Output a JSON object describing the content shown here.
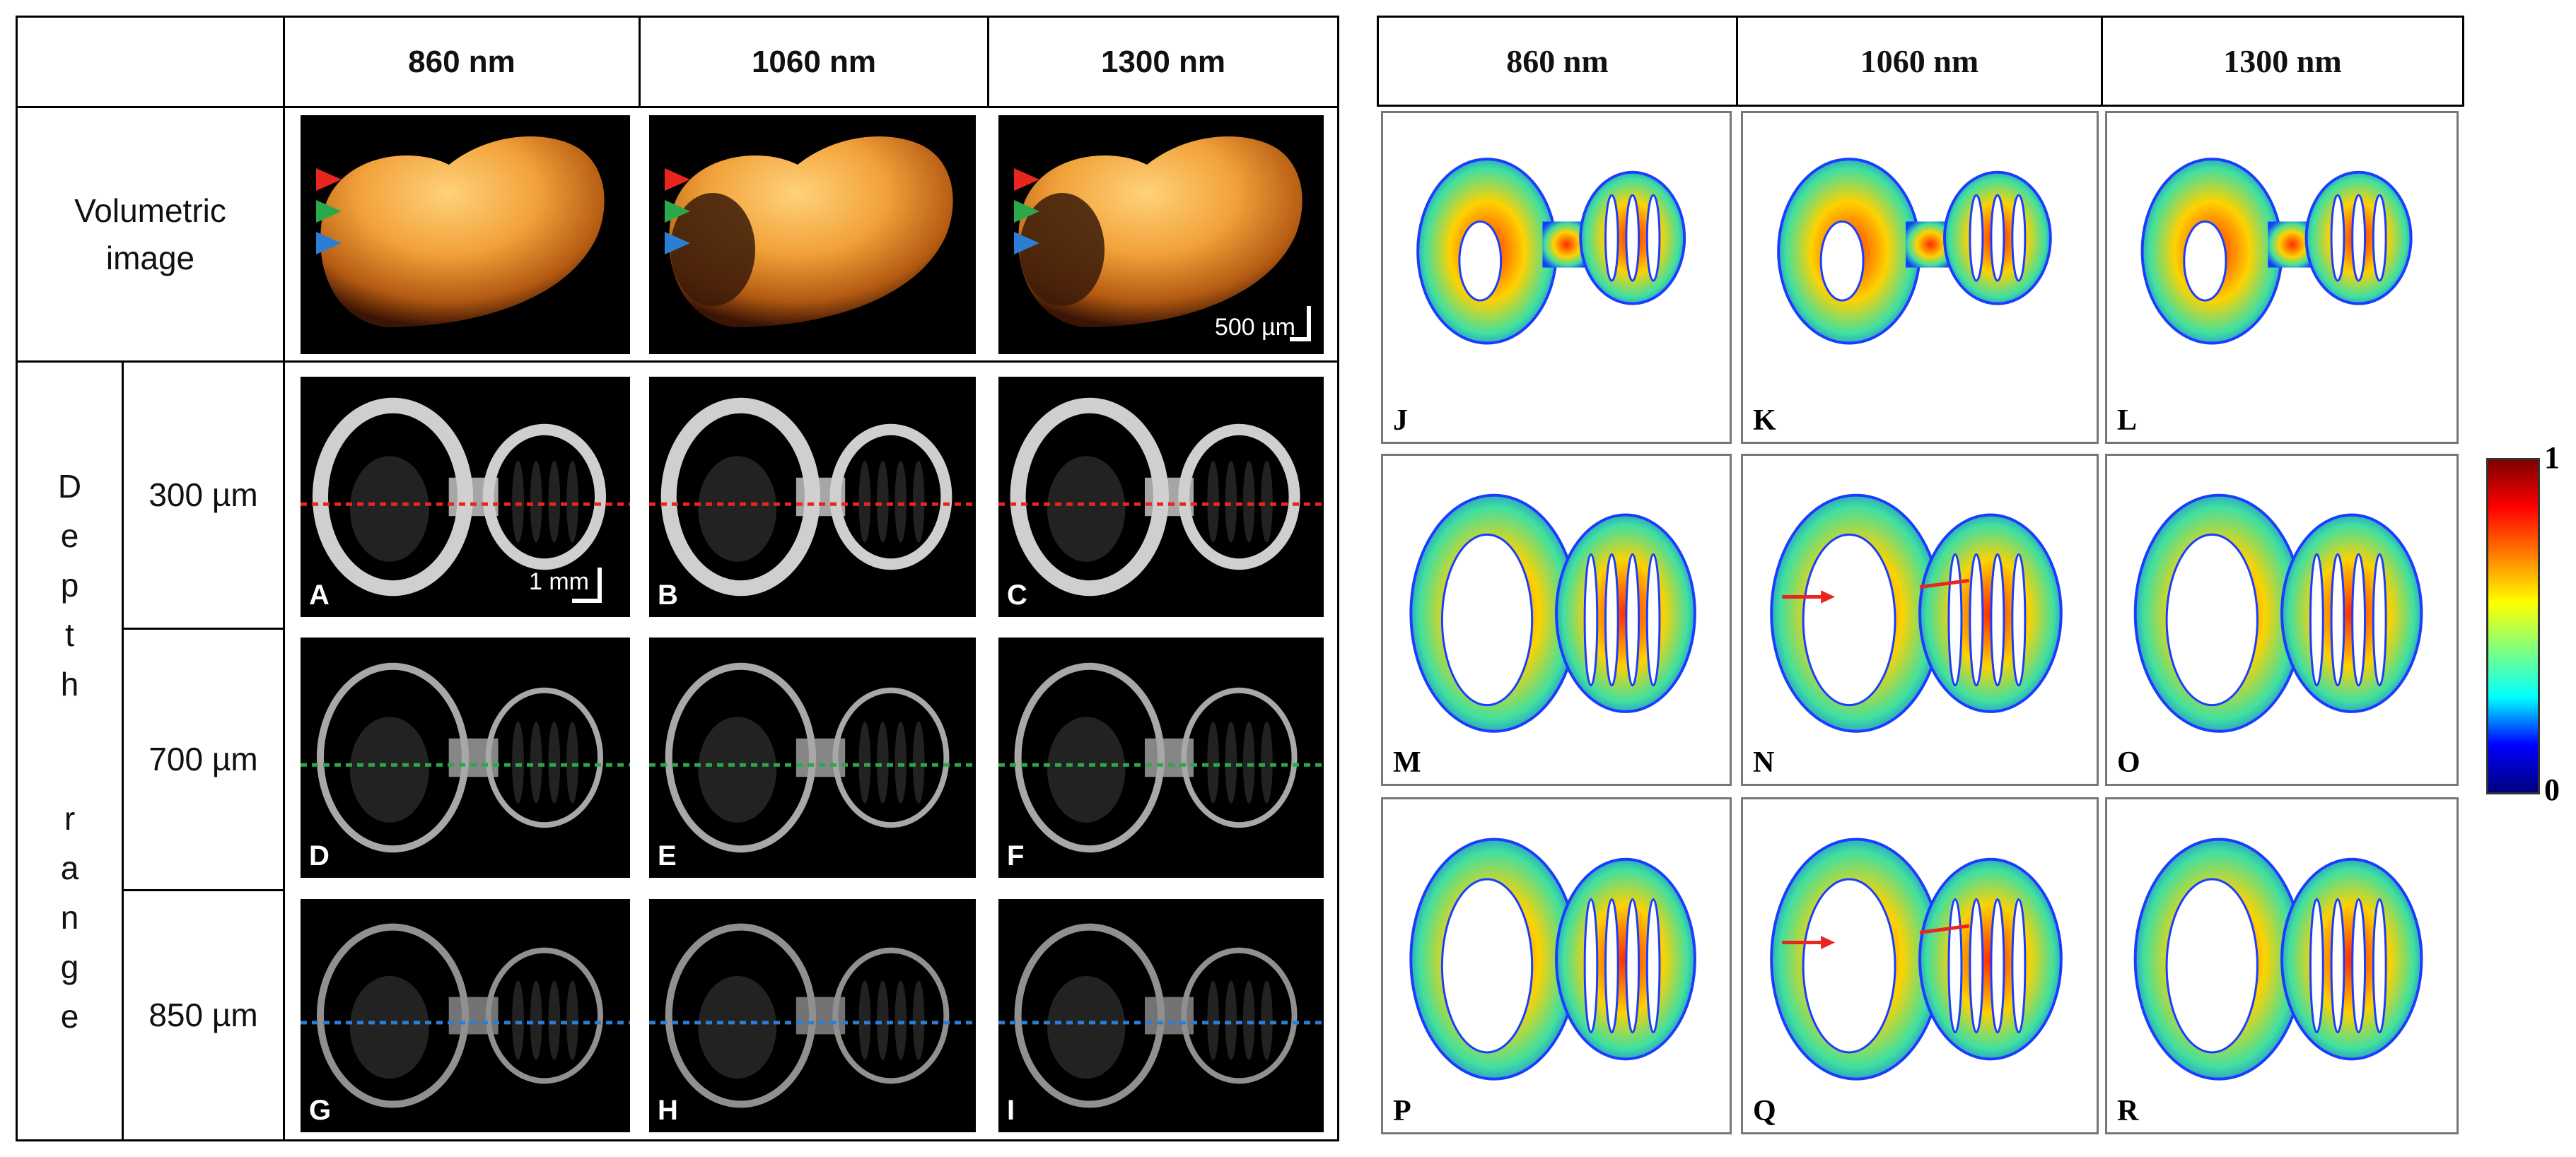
{
  "left_table": {
    "col_headers": [
      "860 nm",
      "1060 nm",
      "1300 nm"
    ],
    "volumetric_label": "Volumetric\nimage",
    "depth_label_letters": [
      "D",
      "e",
      "p",
      "t",
      "h",
      "r",
      "a",
      "n",
      "g",
      "e"
    ],
    "depths": [
      "300 µm",
      "700 µm",
      "850 µm"
    ],
    "panel_letters": [
      [
        "A",
        "B",
        "C"
      ],
      [
        "D",
        "E",
        "F"
      ],
      [
        "G",
        "H",
        "I"
      ]
    ],
    "scalebar_volume": "500 µm",
    "scalebar_slice": "1 mm",
    "arrow_colors": [
      "#e8261f",
      "#2aa84a",
      "#2a7fd4"
    ],
    "dashed_colors": [
      "#e8261f",
      "#2aa84a",
      "#2a7fd4"
    ]
  },
  "right_table": {
    "col_headers": [
      "860 nm",
      "1060 nm",
      "1300 nm"
    ],
    "panel_letters": [
      [
        "J",
        "K",
        "L"
      ],
      [
        "M",
        "N",
        "O"
      ],
      [
        "P",
        "Q",
        "R"
      ]
    ]
  },
  "colorbar": {
    "max_label": "1",
    "min_label": "0",
    "stops": [
      "#00007f",
      "#0000ff",
      "#00ffff",
      "#7fff7f",
      "#ffff00",
      "#ff7f00",
      "#ff0000",
      "#7f0000"
    ]
  }
}
